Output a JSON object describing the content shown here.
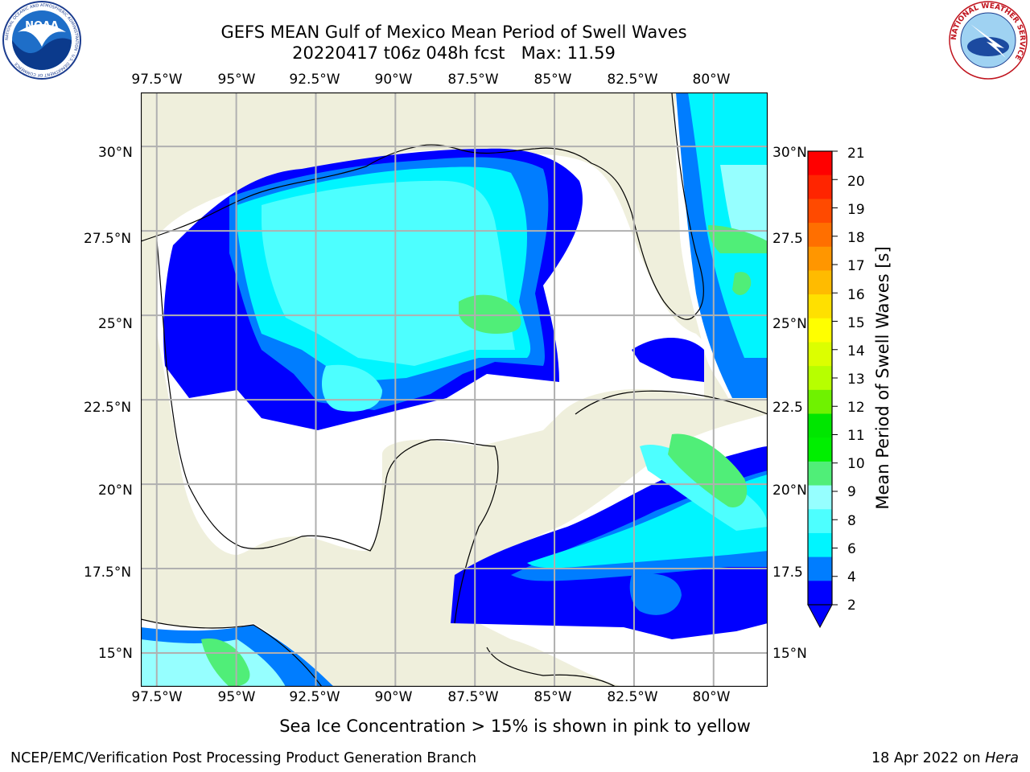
{
  "title": {
    "line1": "GEFS MEAN Gulf of Mexico Mean Period of Swell Waves",
    "line2": "20220417 t06z 048h fcst   Max: 11.59"
  },
  "logos": {
    "left_icon": "noaa-logo-icon",
    "left_name": "NOAA",
    "left_ring_text": "NATIONAL OCEANIC AND ATMOSPHERIC ADMINISTRATION · U.S. DEPARTMENT OF COMMERCE",
    "right_icon": "nws-logo-icon",
    "right_ring_text": "NATIONAL WEATHER SERVICE"
  },
  "map": {
    "lon_ticks": [
      "97.5°W",
      "95°W",
      "92.5°W",
      "90°W",
      "87.5°W",
      "85°W",
      "82.5°W",
      "80°W"
    ],
    "lat_ticks_left": [
      "30°N",
      "27.5°N",
      "25°N",
      "22.5°N",
      "20°N",
      "17.5°N",
      "15°N"
    ],
    "lat_ticks_right": [
      "30°N",
      "27.5",
      "25°N",
      "22.5",
      "20°N",
      "17.5",
      "15°N"
    ],
    "lon_range": [
      -98,
      -78.3
    ],
    "lat_range": [
      14,
      31.6
    ],
    "land_color": "#efefdc",
    "water_color": "#ffffff",
    "grid_color": "#b0b0b0"
  },
  "colorbar": {
    "label": "Mean Period of Swell Waves [s]",
    "ticks": [
      "21",
      "20",
      "19",
      "18",
      "17",
      "16",
      "15",
      "14",
      "13",
      "12",
      "11",
      "10",
      "9",
      "8",
      "6",
      "4",
      "2"
    ],
    "colors": [
      "#ff0000",
      "#ff2500",
      "#ff4a00",
      "#ff6f00",
      "#ff9600",
      "#ffbb00",
      "#ffe000",
      "#ffff00",
      "#dcff00",
      "#b7ff00",
      "#6ff200",
      "#00e600",
      "#00ef00",
      "#50ee78",
      "#96ffff",
      "#4dffff",
      "#00f5ff",
      "#007dff",
      "#0000ff"
    ],
    "extend_color": "#0000ff"
  },
  "note": "Sea Ice Concentration > 15% is shown in pink to yellow",
  "footer": {
    "left": "NCEP/EMC/Verification Post Processing Product Generation Branch",
    "right_date": "18 Apr 2022 on",
    "right_host": "Hera"
  }
}
